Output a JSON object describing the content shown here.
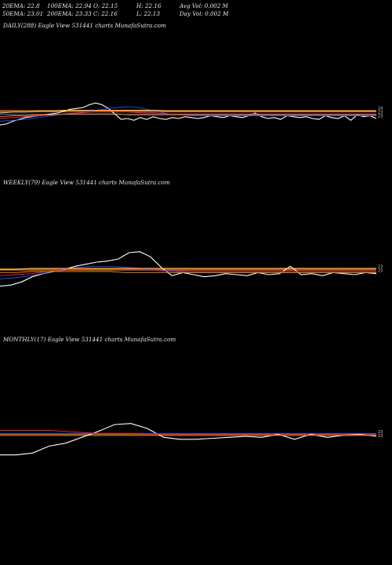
{
  "header": {
    "row1": [
      "20EMA: 22.8",
      "100EMA: 22.94",
      "O: 22.15",
      "H: 22.16",
      "Avg Vol: 0.002  M"
    ],
    "row2": [
      "50EMA: 23.01",
      "200EMA: 23.33",
      "C: 22.16",
      "L: 22.13",
      "Day Vol: 0.002  M"
    ]
  },
  "panels": [
    {
      "label": "DAILY(288) Eagle   View  531441 charts MunafaSutra.com"
    },
    {
      "label": "WEEKLY(79) Eagle   View  531441 charts MunafaSutra.com"
    },
    {
      "label": "MONTHLY(17) Eagle   View  531441 charts MunafaSutra.com"
    }
  ],
  "colors": {
    "price": "#ffffff",
    "ema20": "#1e50ff",
    "ema50": "#ff2020",
    "ema100": "#ff8800",
    "ema200": "#ffd060",
    "blue_guide": "#4a6cff",
    "orange_band": "#a05a1a"
  },
  "chart_data": [
    {
      "type": "line",
      "name": "daily",
      "ylim": [
        19.5,
        25.5
      ],
      "series": [
        {
          "key": "price",
          "values": [
            21.8,
            21.9,
            22.2,
            22.4,
            22.6,
            22.7,
            22.8,
            22.9,
            23.0,
            23.1,
            23.3,
            23.5,
            23.6,
            23.7,
            24.0,
            24.2,
            24.0,
            23.6,
            23.0,
            22.4,
            22.5,
            22.3,
            22.6,
            22.4,
            22.7,
            22.5,
            22.4,
            22.6,
            22.5,
            22.7,
            22.6,
            22.5,
            22.6,
            22.8,
            22.7,
            22.6,
            22.8,
            22.7,
            22.6,
            22.8,
            23.1,
            22.7,
            22.5,
            22.6,
            22.4,
            22.8,
            22.7,
            22.6,
            22.7,
            22.5,
            22.4,
            22.8,
            22.6,
            22.5,
            22.8,
            22.3,
            22.9,
            22.7,
            22.8,
            22.5
          ]
        },
        {
          "key": "ema20",
          "values": [
            22.2,
            22.3,
            22.4,
            22.6,
            22.8,
            23.0,
            23.1,
            23.3,
            23.5,
            23.7,
            23.8,
            23.6,
            23.3,
            23.0,
            22.9,
            22.8,
            22.8,
            22.8,
            22.8,
            22.8,
            22.8,
            22.8,
            22.8,
            22.8,
            22.8,
            22.8,
            22.8,
            22.8,
            22.8,
            22.8
          ]
        },
        {
          "key": "ema50",
          "values": [
            22.5,
            22.6,
            22.7,
            22.8,
            22.9,
            23.0,
            23.1,
            23.2,
            23.3,
            23.3,
            23.2,
            23.1,
            23.1,
            23.0,
            23.0,
            23.0,
            23.0,
            23.0,
            23.0,
            23.0,
            23.0,
            23.0,
            23.0,
            23.0,
            23.0,
            23.0,
            23.0,
            23.0,
            23.0,
            23.0
          ]
        },
        {
          "key": "ema100",
          "values": [
            22.7,
            22.8,
            22.8,
            22.9,
            22.9,
            23.0,
            23.0,
            23.0,
            23.0,
            23.0,
            22.9,
            22.9,
            22.9,
            22.9,
            22.9,
            22.9,
            22.9,
            22.9,
            22.9,
            22.9,
            22.9,
            22.9,
            22.9,
            22.9,
            22.9,
            22.9,
            22.9,
            22.9,
            22.9,
            22.9
          ]
        },
        {
          "key": "ema200",
          "values": [
            23.1,
            23.2,
            23.2,
            23.3,
            23.3,
            23.4,
            23.4,
            23.4,
            23.4,
            23.4,
            23.4,
            23.4,
            23.4,
            23.3,
            23.3,
            23.3,
            23.3,
            23.3,
            23.3,
            23.3,
            23.3,
            23.3,
            23.3,
            23.3,
            23.3,
            23.3,
            23.3,
            23.3,
            23.3,
            23.3
          ]
        }
      ],
      "hlines": [
        23.3,
        22.95
      ],
      "ticks": [
        "24",
        "23",
        "23"
      ]
    },
    {
      "type": "line",
      "name": "weekly",
      "ylim": [
        20.0,
        26.0
      ],
      "series": [
        {
          "key": "price",
          "values": [
            21.6,
            21.7,
            22.0,
            22.5,
            22.8,
            23.0,
            23.2,
            23.5,
            23.7,
            23.9,
            24.0,
            24.2,
            24.8,
            24.9,
            24.4,
            23.4,
            22.6,
            22.9,
            22.7,
            22.5,
            22.6,
            22.8,
            22.7,
            22.6,
            22.9,
            22.7,
            22.8,
            23.5,
            22.7,
            22.8,
            22.6,
            22.9,
            22.8,
            22.7,
            22.9,
            22.8
          ]
        },
        {
          "key": "ema20",
          "values": [
            22.3,
            22.4,
            22.6,
            22.9,
            23.2,
            23.4,
            23.5,
            23.5,
            23.4,
            23.3,
            23.1,
            23.0,
            22.9,
            22.9,
            22.9,
            22.9,
            22.9,
            22.9,
            22.9,
            22.9,
            22.9,
            22.9,
            22.9,
            22.9,
            22.9
          ]
        },
        {
          "key": "ema50",
          "values": [
            22.6,
            22.7,
            22.8,
            23.0,
            23.1,
            23.2,
            23.3,
            23.3,
            23.2,
            23.2,
            23.1,
            23.1,
            23.0,
            23.0,
            23.0,
            23.0,
            23.0,
            23.0,
            23.0,
            23.0,
            23.0,
            23.0,
            23.0,
            23.0,
            23.0
          ]
        },
        {
          "key": "ema100",
          "values": [
            22.9,
            22.9,
            23.0,
            23.0,
            23.0,
            23.0,
            23.0,
            23.0,
            22.9,
            22.9,
            22.9,
            22.9,
            22.9,
            22.9,
            22.9,
            22.9,
            22.9,
            22.9,
            22.9,
            22.9,
            22.9,
            22.9,
            22.9,
            22.9,
            22.9
          ]
        },
        {
          "key": "ema200",
          "values": [
            23.2,
            23.2,
            23.3,
            23.3,
            23.3,
            23.3,
            23.3,
            23.3,
            23.3,
            23.3,
            23.3,
            23.3,
            23.3,
            23.3,
            23.3,
            23.3,
            23.3,
            23.3,
            23.3,
            23.3,
            23.3,
            23.3,
            23.3,
            23.3,
            23.3
          ]
        }
      ],
      "hlines": [
        23.2
      ],
      "ticks": [
        "23",
        "23"
      ]
    },
    {
      "type": "line",
      "name": "monthly",
      "ylim": [
        19.0,
        27.0
      ],
      "series": [
        {
          "key": "price",
          "values": [
            21.1,
            21.1,
            21.3,
            22.0,
            22.3,
            22.9,
            23.5,
            24.2,
            24.3,
            23.8,
            22.9,
            22.7,
            22.7,
            22.8,
            22.9,
            23.0,
            22.9,
            23.2,
            22.7,
            23.2,
            22.9,
            23.1,
            23.2,
            23.0
          ]
        },
        {
          "key": "ema20",
          "values": [
            23.3,
            23.3,
            23.3,
            23.3,
            23.3,
            23.3,
            23.3,
            23.3,
            23.3,
            23.3,
            23.3,
            23.3,
            23.3,
            23.3,
            23.3,
            23.3,
            23.3,
            23.3,
            23.3,
            23.3,
            23.3,
            23.3,
            23.3,
            23.3
          ]
        },
        {
          "key": "ema50",
          "values": [
            23.6,
            23.6,
            23.6,
            23.6,
            23.5,
            23.4,
            23.3,
            23.3,
            23.3,
            23.2,
            23.2,
            23.2,
            23.2,
            23.2,
            23.1,
            23.1,
            23.1,
            23.1,
            23.1,
            23.1,
            23.1,
            23.1,
            23.1,
            23.1
          ]
        }
      ],
      "hlines": [
        23.15
      ],
      "ticks": [
        "23",
        "23"
      ]
    }
  ]
}
